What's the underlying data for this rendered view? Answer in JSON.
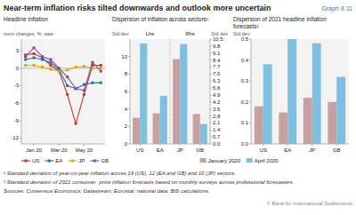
{
  "title": "Near-term inflation risks tilted downwards and outlook more uncertain",
  "annotations": [
    "Graph II.11",
    "¹ Standard deviation of year-on-year inflation across 19 (US), 12 (EA and GB) and 10 (JP) sectors.",
    "² Standard deviation of 2021 consumer",
    "price inflation forecasts based on monthly surveys across professional forecasters.",
    "Sources: Consensus Economics; Datastream; Eurostat; national data; BIS calculations.",
    "© Bank for International Settlements"
  ],
  "chart_data": [
    {
      "type": "line",
      "title": "Headline inflation",
      "y_label": "mom changes, %; saar",
      "categories": [
        null,
        "Jan 20",
        null,
        null,
        "Mar 20",
        null,
        null,
        "May 20",
        null,
        null
      ],
      "series": [
        {
          "name": "US",
          "color": "#c0392b",
          "marker": "square",
          "values": [
            2.3,
            2.5,
            1.8,
            0.5,
            -0.5,
            -4.5,
            -9.5,
            -4.5,
            0.5,
            0.5
          ]
        },
        {
          "name": "EA",
          "color": "#2471a3",
          "marker": "square",
          "values": [
            1.5,
            1.8,
            1.5,
            1.0,
            -0.2,
            -3.0,
            -3.5,
            -2.8,
            -2.5,
            -2.5
          ]
        },
        {
          "name": "JP",
          "color": "#d4ac0d",
          "marker": "square",
          "values": [
            0.5,
            0.5,
            0.2,
            -0.2,
            -0.5,
            -0.3,
            0.2,
            0.3,
            0.0,
            0.0
          ]
        },
        {
          "name": "GB",
          "color": "#8e44ad",
          "marker": "square",
          "values": [
            2.0,
            3.5,
            2.0,
            1.5,
            0.0,
            -1.5,
            -3.5,
            -3.8,
            1.0,
            -0.5
          ]
        }
      ],
      "ylim": [
        -13,
        5
      ],
      "yticks": [
        3,
        0,
        -3,
        -6,
        -9,
        -12
      ],
      "grid": false,
      "legend": "bottom"
    },
    {
      "type": "bar",
      "title": "Dispersion of inflation across sectors¹",
      "y_label": "Std dev",
      "y2_label": "Std dev",
      "annotations": [
        "Lhs",
        "Rhs"
      ],
      "categories": [
        "US",
        "EA",
        "JP",
        "GB"
      ],
      "series": [
        {
          "color": "#c9a0a0",
          "values": [
            3.0,
            3.5,
            null,
            null
          ]
        },
        {
          "color": "#7fbfdf",
          "values": [
            11.5,
            5.5,
            null,
            null
          ]
        },
        {
          "color": "#c9a0a0",
          "axis": "y2",
          "values": [
            null,
            null,
            8.5,
            3.0
          ]
        },
        {
          "color": "#7fbfdf",
          "axis": "y2",
          "values": [
            null,
            null,
            10.0,
            2.0
          ]
        }
      ],
      "ylim": [
        0,
        12
      ],
      "yticks": [
        0,
        2,
        4,
        6,
        8,
        10
      ],
      "y2lim": [
        0,
        10.5
      ],
      "y2ticks": [
        {
          "value": 0,
          "label": "0.0"
        },
        0.7,
        1.4,
        2.1,
        2.8,
        3.5,
        4.2,
        4.9,
        5.6,
        6.3,
        {
          "value": 7,
          "label": "7.0"
        },
        7.7,
        8.4,
        9.1,
        9.8,
        10.5
      ],
      "grid": false
    },
    {
      "type": "bar",
      "title": "Dispersion of 2021 headline inflation\nforecasts²",
      "y_label": "Std dev",
      "categories": [
        "US",
        "EA",
        "JP",
        "GB"
      ],
      "series": [
        {
          "name": "January 2020",
          "color": "#c9a0a0",
          "values": [
            0.18,
            0.15,
            0.22,
            0.2
          ]
        },
        {
          "name": "April 2020",
          "color": "#7fbfdf",
          "values": [
            0.38,
            0.5,
            0.48,
            0.32
          ]
        }
      ],
      "ylim": [
        0,
        0.5
      ],
      "yticks": [
        {
          "value": 0,
          "label": "0.0"
        },
        0.1,
        0.2,
        0.3,
        0.4,
        0.5
      ],
      "grid": false,
      "legend": "bottom"
    }
  ]
}
